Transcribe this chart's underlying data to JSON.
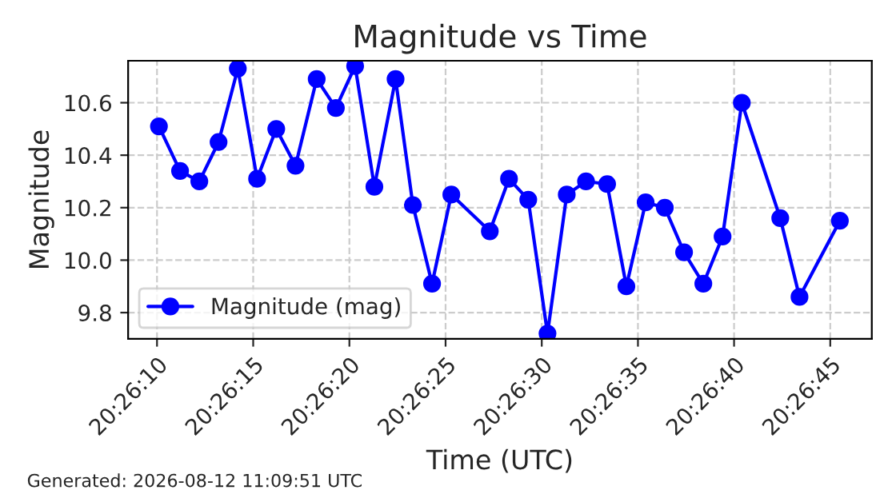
{
  "chart_data": {
    "type": "line",
    "title": "Magnitude vs Time",
    "xlabel": "Time (UTC)",
    "ylabel": "Magnitude",
    "annotations": [
      "Generated: 2026-08-12 11:09:51 UTC"
    ],
    "x": [
      20.436139,
      20.436444,
      20.436722,
      20.437,
      20.437278,
      20.437556,
      20.437833,
      20.438111,
      20.438417,
      20.438694,
      20.438972,
      20.43925,
      20.439556,
      20.439806,
      20.440083,
      20.440361,
      20.440917,
      20.441194,
      20.441472,
      20.44175,
      20.442028,
      20.442306,
      20.442611,
      20.442889,
      20.443167,
      20.443444,
      20.443722,
      20.444,
      20.444278,
      20.444556,
      20.445111,
      20.445389,
      20.445972
    ],
    "series": [
      {
        "name": "Magnitude (mag)",
        "color": "#0000ff",
        "values": [
          10.51,
          10.34,
          10.3,
          10.45,
          10.73,
          10.31,
          10.5,
          10.36,
          10.69,
          10.58,
          10.74,
          10.28,
          10.69,
          10.21,
          9.91,
          10.25,
          10.11,
          10.31,
          10.23,
          9.72,
          10.25,
          10.3,
          10.29,
          9.9,
          10.22,
          10.2,
          10.03,
          9.91,
          10.09,
          10.6,
          10.16,
          9.86,
          10.15
        ]
      }
    ],
    "xlim": [
      20.435694,
      20.446433
    ],
    "ylim": [
      9.7,
      10.76
    ],
    "xticks": [
      {
        "value": 20.436111,
        "label": "20:26:10"
      },
      {
        "value": 20.4375,
        "label": "20:26:15"
      },
      {
        "value": 20.438889,
        "label": "20:26:20"
      },
      {
        "value": 20.440278,
        "label": "20:26:25"
      },
      {
        "value": 20.441667,
        "label": "20:26:30"
      },
      {
        "value": 20.443056,
        "label": "20:26:35"
      },
      {
        "value": 20.444444,
        "label": "20:26:40"
      },
      {
        "value": 20.445833,
        "label": "20:26:45"
      }
    ],
    "yticks": [
      {
        "value": 9.8,
        "label": "9.8"
      },
      {
        "value": 10.0,
        "label": "10.0"
      },
      {
        "value": 10.2,
        "label": "10.2"
      },
      {
        "value": 10.4,
        "label": "10.4"
      },
      {
        "value": 10.6,
        "label": "10.6"
      }
    ],
    "grid": true,
    "legend": "lower left",
    "marker": "circle",
    "line_style": "solid"
  }
}
